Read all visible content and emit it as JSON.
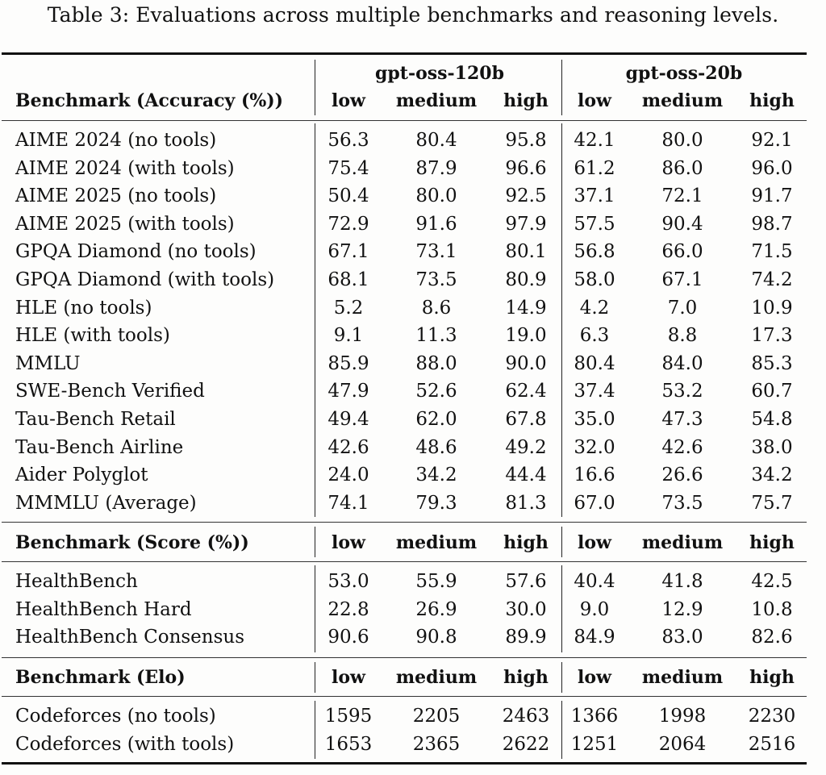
{
  "caption": "Table 3: Evaluations across multiple benchmarks and reasoning levels.",
  "models": [
    "gpt-oss-120b",
    "gpt-oss-20b"
  ],
  "levels": [
    "low",
    "medium",
    "high"
  ],
  "sections": [
    {
      "header": "Benchmark (Accuracy (%))",
      "rows": [
        {
          "name": "AIME 2024 (no tools)",
          "values": [
            "56.3",
            "80.4",
            "95.8",
            "42.1",
            "80.0",
            "92.1"
          ]
        },
        {
          "name": "AIME 2024 (with tools)",
          "values": [
            "75.4",
            "87.9",
            "96.6",
            "61.2",
            "86.0",
            "96.0"
          ]
        },
        {
          "name": "AIME 2025 (no tools)",
          "values": [
            "50.4",
            "80.0",
            "92.5",
            "37.1",
            "72.1",
            "91.7"
          ]
        },
        {
          "name": "AIME 2025 (with tools)",
          "values": [
            "72.9",
            "91.6",
            "97.9",
            "57.5",
            "90.4",
            "98.7"
          ]
        },
        {
          "name": "GPQA Diamond (no tools)",
          "values": [
            "67.1",
            "73.1",
            "80.1",
            "56.8",
            "66.0",
            "71.5"
          ]
        },
        {
          "name": "GPQA Diamond (with tools)",
          "values": [
            "68.1",
            "73.5",
            "80.9",
            "58.0",
            "67.1",
            "74.2"
          ]
        },
        {
          "name": "HLE (no tools)",
          "values": [
            "5.2",
            "8.6",
            "14.9",
            "4.2",
            "7.0",
            "10.9"
          ]
        },
        {
          "name": "HLE (with tools)",
          "values": [
            "9.1",
            "11.3",
            "19.0",
            "6.3",
            "8.8",
            "17.3"
          ]
        },
        {
          "name": "MMLU",
          "values": [
            "85.9",
            "88.0",
            "90.0",
            "80.4",
            "84.0",
            "85.3"
          ]
        },
        {
          "name": "SWE-Bench Verified",
          "values": [
            "47.9",
            "52.6",
            "62.4",
            "37.4",
            "53.2",
            "60.7"
          ]
        },
        {
          "name": "Tau-Bench Retail",
          "values": [
            "49.4",
            "62.0",
            "67.8",
            "35.0",
            "47.3",
            "54.8"
          ]
        },
        {
          "name": "Tau-Bench Airline",
          "values": [
            "42.6",
            "48.6",
            "49.2",
            "32.0",
            "42.6",
            "38.0"
          ]
        },
        {
          "name": "Aider Polyglot",
          "values": [
            "24.0",
            "34.2",
            "44.4",
            "16.6",
            "26.6",
            "34.2"
          ]
        },
        {
          "name": "MMMLU (Average)",
          "values": [
            "74.1",
            "79.3",
            "81.3",
            "67.0",
            "73.5",
            "75.7"
          ]
        }
      ]
    },
    {
      "header": "Benchmark (Score (%))",
      "rows": [
        {
          "name": "HealthBench",
          "values": [
            "53.0",
            "55.9",
            "57.6",
            "40.4",
            "41.8",
            "42.5"
          ]
        },
        {
          "name": "HealthBench Hard",
          "values": [
            "22.8",
            "26.9",
            "30.0",
            "9.0",
            "12.9",
            "10.8"
          ]
        },
        {
          "name": "HealthBench Consensus",
          "values": [
            "90.6",
            "90.8",
            "89.9",
            "84.9",
            "83.0",
            "82.6"
          ]
        }
      ]
    },
    {
      "header": "Benchmark (Elo)",
      "rows": [
        {
          "name": "Codeforces (no tools)",
          "values": [
            "1595",
            "2205",
            "2463",
            "1366",
            "1998",
            "2230"
          ]
        },
        {
          "name": "Codeforces (with tools)",
          "values": [
            "1653",
            "2365",
            "2622",
            "1251",
            "2064",
            "2516"
          ]
        }
      ]
    }
  ]
}
